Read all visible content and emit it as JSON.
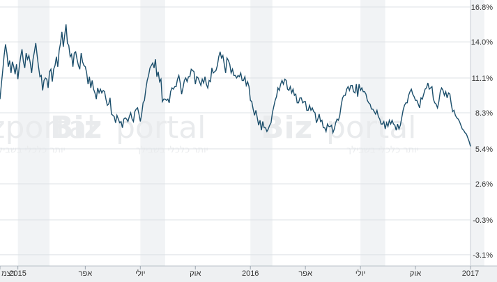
{
  "chart_data": {
    "type": "line",
    "title": "",
    "xlabel": "",
    "ylabel": "",
    "ylim": [
      -4.0,
      16.8
    ],
    "y_ticks": [
      "16.8%",
      "14.0%",
      "11.1%",
      "8.3%",
      "5.4%",
      "2.6%",
      "-0.3%",
      "-3.1%"
    ],
    "y_tick_values": [
      16.8,
      14.0,
      11.1,
      8.3,
      5.4,
      2.6,
      -0.3,
      -3.1
    ],
    "x_ticks": [
      {
        "label": "דצמ",
        "index": 0
      },
      {
        "label": "2015",
        "index": 13
      },
      {
        "label": "אפר",
        "index": 62
      },
      {
        "label": "יולי",
        "index": 102
      },
      {
        "label": "אוק",
        "index": 142
      },
      {
        "label": "2016",
        "index": 182
      },
      {
        "label": "אפר",
        "index": 222
      },
      {
        "label": "יולי",
        "index": 262
      },
      {
        "label": "אוק",
        "index": 302
      },
      {
        "label": "2017",
        "index": 342
      }
    ],
    "grid": true,
    "line_color": "#1b4e6b",
    "series": [
      {
        "name": "",
        "values": [
          9.4,
          10.6,
          11.7,
          12.9,
          13.8,
          13.1,
          12.0,
          12.5,
          11.5,
          12.4,
          12.0,
          11.4,
          12.2,
          11.0,
          12.0,
          12.8,
          13.4,
          12.4,
          11.9,
          13.1,
          12.6,
          12.9,
          12.3,
          11.5,
          12.6,
          13.2,
          13.9,
          12.9,
          12.0,
          11.2,
          11.3,
          10.1,
          10.9,
          11.1,
          11.0,
          10.3,
          11.6,
          11.8,
          10.8,
          11.8,
          12.1,
          12.8,
          12.0,
          13.3,
          13.9,
          14.8,
          13.6,
          14.5,
          15.4,
          13.9,
          13.7,
          12.8,
          13.0,
          12.0,
          13.1,
          13.2,
          12.6,
          12.1,
          11.8,
          13.1,
          12.4,
          12.1,
          12.0,
          11.5,
          10.6,
          11.2,
          10.3,
          10.9,
          10.2,
          9.9,
          9.4,
          10.3,
          9.9,
          10.2,
          9.9,
          10.1,
          10.0,
          9.4,
          8.9,
          9.0,
          9.5,
          8.2,
          8.1,
          8.0,
          7.5,
          8.1,
          7.8,
          7.5,
          7.6,
          7.1,
          7.8,
          7.9,
          7.8,
          7.6,
          8.0,
          8.3,
          7.8,
          7.6,
          8.4,
          8.6,
          8.7,
          8.2,
          7.6,
          8.2,
          9.1,
          9.3,
          10.2,
          10.9,
          11.3,
          11.9,
          12.1,
          12.3,
          11.9,
          12.6,
          11.2,
          11.6,
          10.8,
          11.0,
          9.2,
          9.4,
          9.4,
          9.3,
          9.4,
          9.1,
          10.0,
          10.3,
          10.2,
          10.4,
          10.4,
          11.0,
          11.3,
          10.7,
          9.8,
          10.3,
          10.9,
          11.1,
          10.8,
          11.2,
          11.2,
          11.8,
          11.7,
          11.6,
          10.6,
          11.2,
          11.1,
          10.8,
          10.5,
          11.0,
          10.7,
          11.2,
          10.6,
          10.3,
          10.9,
          10.8,
          11.9,
          11.5,
          11.6,
          11.7,
          12.1,
          12.8,
          13.2,
          12.7,
          12.9,
          12.2,
          11.5,
          12.7,
          12.5,
          12.2,
          11.5,
          11.8,
          11.3,
          11.3,
          11.1,
          11.3,
          11.2,
          11.5,
          10.9,
          10.9,
          11.2,
          10.5,
          10.8,
          10.4,
          9.3,
          9.2,
          8.6,
          8.1,
          8.5,
          7.9,
          7.3,
          7.7,
          6.9,
          7.6,
          7.1,
          7.1,
          6.8,
          7.0,
          7.3,
          7.5,
          8.3,
          8.8,
          9.3,
          9.6,
          10.3,
          10.1,
          10.6,
          10.9,
          10.6,
          11.0,
          10.9,
          10.2,
          10.1,
          10.4,
          9.9,
          10.2,
          9.7,
          9.8,
          9.1,
          9.1,
          9.5,
          9.5,
          9.1,
          9.2,
          9.2,
          8.5,
          8.5,
          8.9,
          8.5,
          8.7,
          8.4,
          8.3,
          7.5,
          7.8,
          8.2,
          7.6,
          7.7,
          7.1,
          7.1,
          6.8,
          7.4,
          7.2,
          7.2,
          7.3,
          6.7,
          7.0,
          7.5,
          7.8,
          7.7,
          8.1,
          8.9,
          9.5,
          9.7,
          9.7,
          10.2,
          10.4,
          10.1,
          10.5,
          10.5,
          10.0,
          9.9,
          10.6,
          9.6,
          10.6,
          10.1,
          10.3,
          10.0,
          10.0,
          9.8,
          9.3,
          9.1,
          9.0,
          8.6,
          8.6,
          8.4,
          8.2,
          8.5,
          8.0,
          7.8,
          7.4,
          7.4,
          7.6,
          7.0,
          7.5,
          7.2,
          7.7,
          7.4,
          7.7,
          7.4,
          7.3,
          6.9,
          7.4,
          7.0,
          7.3,
          7.9,
          8.5,
          8.9,
          9.1,
          9.1,
          9.7,
          10.0,
          10.2,
          9.8,
          9.6,
          9.3,
          9.3,
          9.0,
          8.7,
          9.5,
          9.4,
          9.8,
          10.2,
          10.3,
          10.7,
          10.2,
          10.3,
          10.4,
          9.4,
          9.1,
          9.0,
          8.7,
          9.2,
          10.0,
          10.3,
          10.1,
          9.7,
          10.0,
          9.5,
          9.9,
          9.8,
          9.0,
          8.4,
          8.5,
          8.1,
          7.9,
          7.8,
          7.6,
          7.3,
          7.0,
          6.9,
          6.7,
          6.6,
          6.3,
          6.0,
          5.6
        ]
      }
    ]
  }
}
